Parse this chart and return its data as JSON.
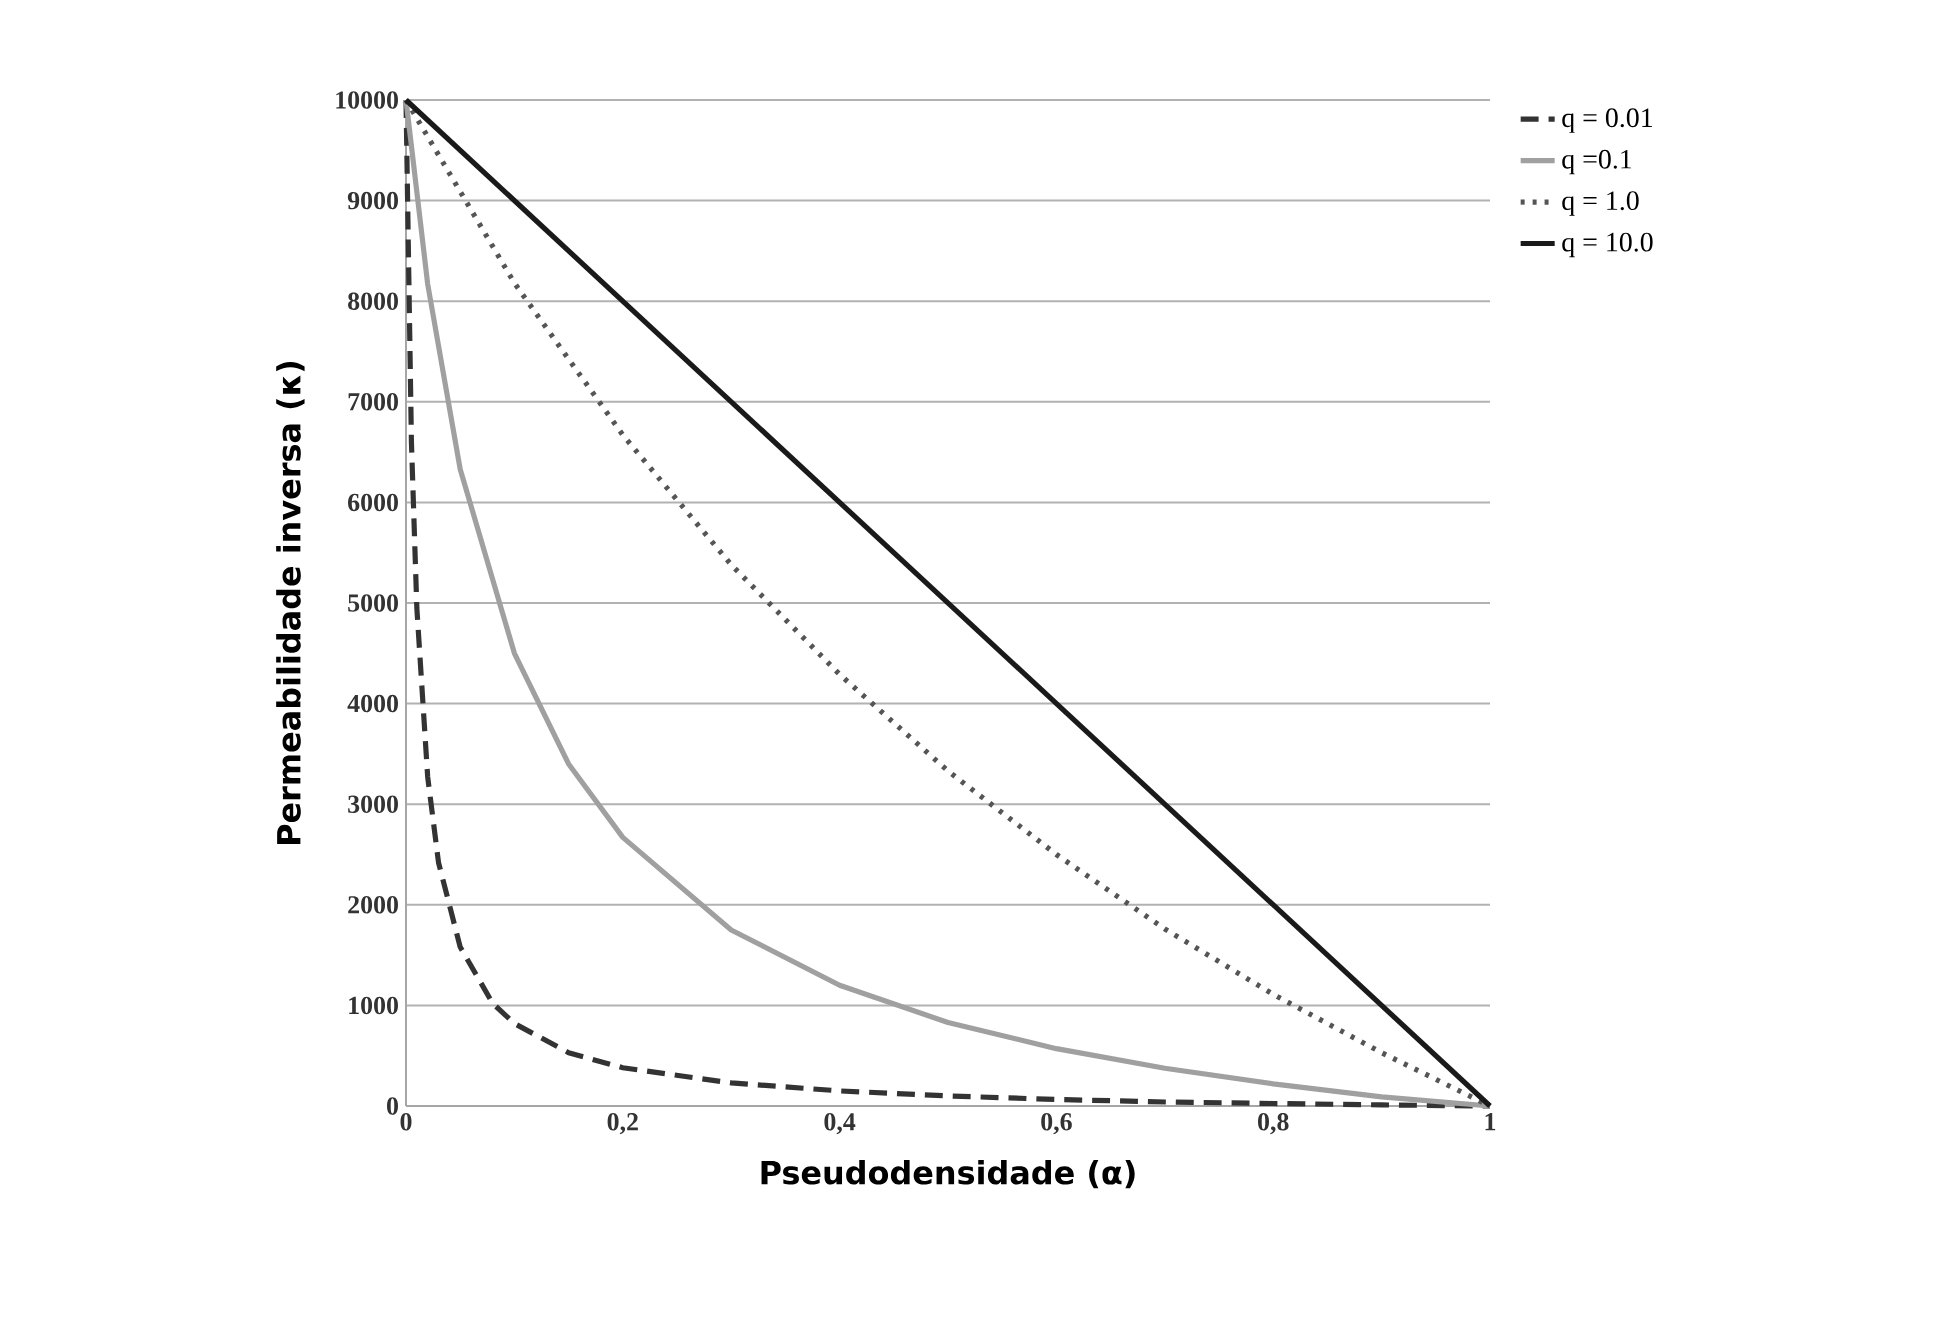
{
  "chart_data": {
    "type": "line",
    "xlabel": "Pseudodensidade (α)",
    "ylabel": "Permeabilidade inversa (κ)",
    "xlim": [
      0,
      1
    ],
    "ylim": [
      0,
      10000
    ],
    "xticks": [
      0,
      {
        "value": 0.2,
        "label": "0,2"
      },
      {
        "value": 0.4,
        "label": "0,4"
      },
      {
        "value": 0.6,
        "label": "0,6"
      },
      {
        "value": 0.8,
        "label": "0,8"
      },
      1
    ],
    "yticks": [
      0,
      1000,
      2000,
      3000,
      4000,
      5000,
      6000,
      7000,
      8000,
      9000,
      10000
    ],
    "grid": "y",
    "legend": "top right",
    "marker": "none",
    "series": [
      {
        "name": "q = 0.01",
        "color": "#333333",
        "line_style": "dashed",
        "x": [
          0,
          0.005,
          0.01,
          0.02,
          0.03,
          0.05,
          0.08,
          0.1,
          0.15,
          0.2,
          0.3,
          0.4,
          0.5,
          0.6,
          0.7,
          0.8,
          0.9,
          1
        ],
        "values": [
          10000,
          6600,
          4950,
          3270,
          2420,
          1580,
          1020,
          820,
          530,
          380,
          230,
          150,
          100,
          65,
          40,
          25,
          11,
          0
        ]
      },
      {
        "name": "q =0.1",
        "color": "#a0a0a0",
        "line_style": "solid",
        "x": [
          0,
          0.02,
          0.05,
          0.1,
          0.15,
          0.2,
          0.3,
          0.4,
          0.5,
          0.6,
          0.7,
          0.8,
          0.9,
          1
        ],
        "values": [
          10000,
          8170,
          6330,
          4500,
          3400,
          2670,
          1750,
          1200,
          830,
          570,
          375,
          220,
          90,
          0
        ]
      },
      {
        "name": "q = 1.0",
        "color": "#555555",
        "line_style": "dotted",
        "x": [
          0,
          0.1,
          0.2,
          0.3,
          0.4,
          0.5,
          0.6,
          0.7,
          0.8,
          0.9,
          1
        ],
        "values": [
          10000,
          8180,
          6670,
          5380,
          4290,
          3330,
          2500,
          1760,
          1110,
          530,
          0
        ]
      },
      {
        "name": "q = 10.0",
        "color": "#1a1a1a",
        "line_style": "solid",
        "x": [
          0,
          1
        ],
        "values": [
          10000,
          0
        ]
      }
    ]
  }
}
